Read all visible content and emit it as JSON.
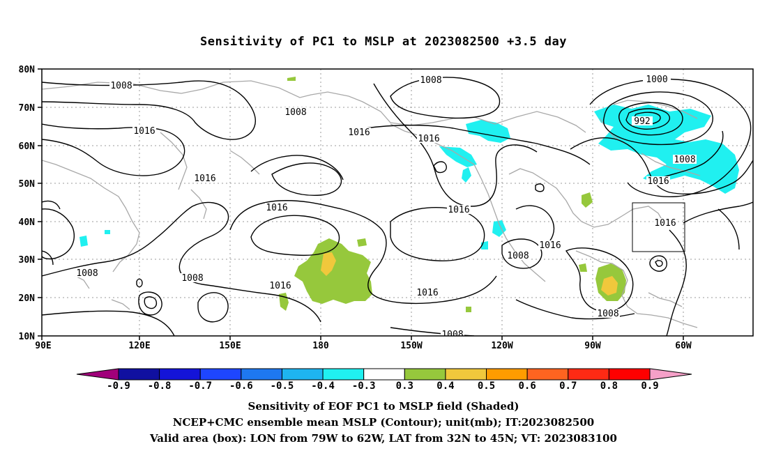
{
  "title": "Sensitivity of PC1 to MSLP at 2023082500 +3.5 day",
  "lat_labels": [
    "80N",
    "70N",
    "60N",
    "50N",
    "40N",
    "30N",
    "20N",
    "10N"
  ],
  "lon_labels": [
    "90E",
    "120E",
    "150E",
    "180",
    "150W",
    "120W",
    "90W",
    "60W"
  ],
  "contour_labels": {
    "l1008": "1008",
    "l1016": "1016",
    "l1000": "1000",
    "l992": "992"
  },
  "colorbar": {
    "tick_labels": [
      "-0.9",
      "-0.8",
      "-0.7",
      "-0.6",
      "-0.5",
      "-0.4",
      "-0.3",
      "0.3",
      "0.4",
      "0.5",
      "0.6",
      "0.7",
      "0.8",
      "0.9"
    ],
    "colors": [
      "#a0007a",
      "#1010a0",
      "#1414d8",
      "#1e46ff",
      "#1e78f0",
      "#1eb4f0",
      "#20f0f0",
      "#ffffff",
      "#96c83c",
      "#f0c83c",
      "#ff9c00",
      "#ff6420",
      "#ff2a14",
      "#ff0000",
      "#f5a0c8"
    ]
  },
  "captions": {
    "line1": "Sensitivity of EOF PC1 to MSLP field (Shaded)",
    "line2": "NCEP+CMC ensemble mean MSLP (Contour); unit(mb); IT:2023082500",
    "line3": "Valid area (box): LON from 79W to 62W, LAT from 32N to 45N; VT: 2023083100"
  },
  "valid_box": {
    "lon_min": -79,
    "lon_max": -62,
    "lat_min": 32,
    "lat_max": 45
  }
}
